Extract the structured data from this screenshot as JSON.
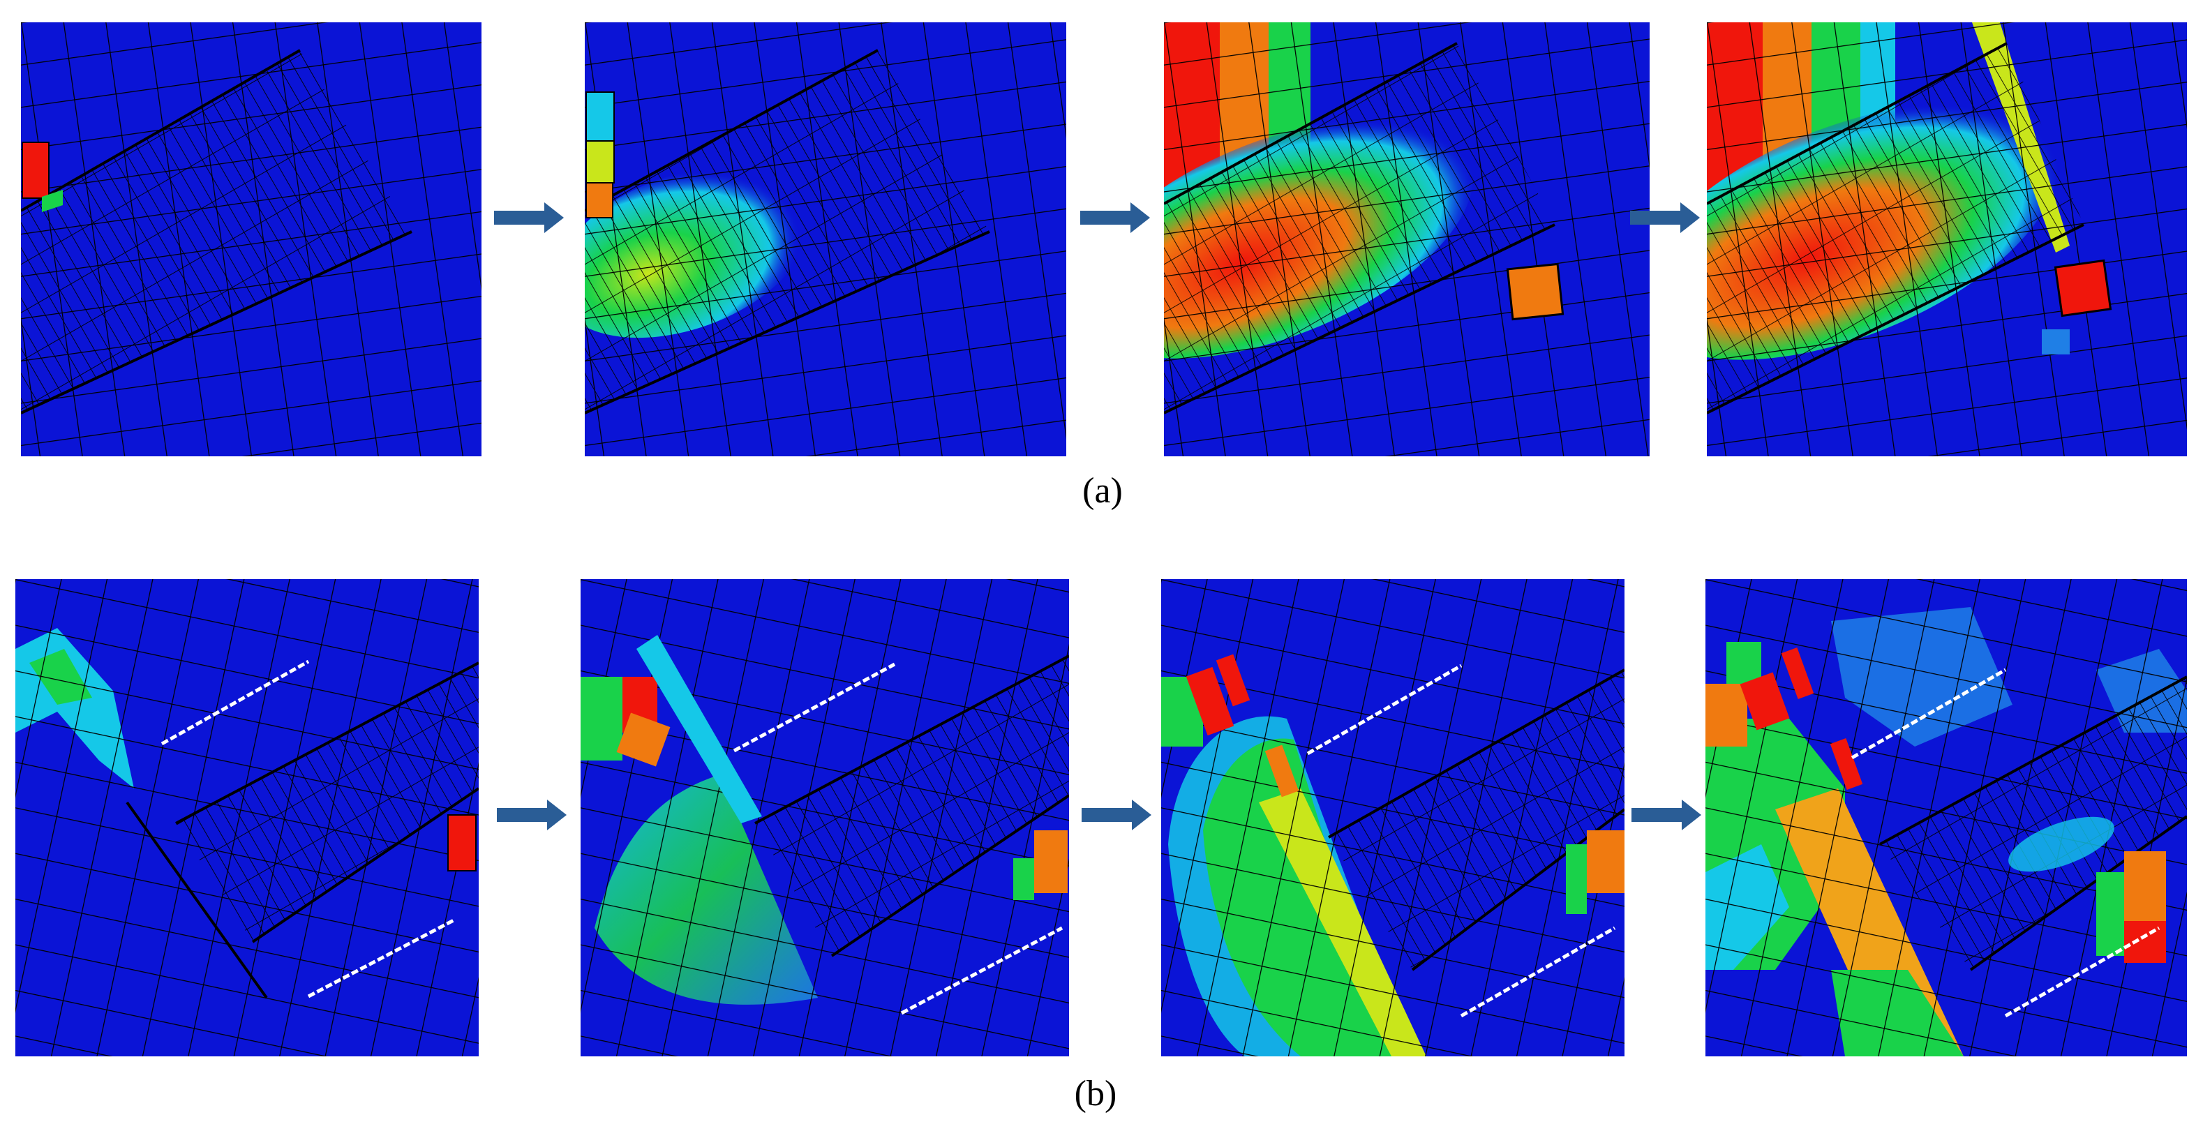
{
  "captions": {
    "row_a": "(a)",
    "row_b": "(b)"
  },
  "colors": {
    "mesh_blue": "#0b14d6",
    "mesh_line": "#000000",
    "contour_light_blue": "#1f7fe6",
    "contour_cyan": "#15c8e8",
    "contour_green": "#19d24a",
    "contour_yellow": "#c9e61b",
    "contour_orange": "#f07a10",
    "contour_red": "#f0160c",
    "arrow": "#2a5d96",
    "dashed_marker": "#ffffff"
  },
  "icons": {
    "arrow": "right-arrow-icon"
  },
  "row_a": {
    "frames": 4
  },
  "row_b": {
    "frames": 4
  }
}
